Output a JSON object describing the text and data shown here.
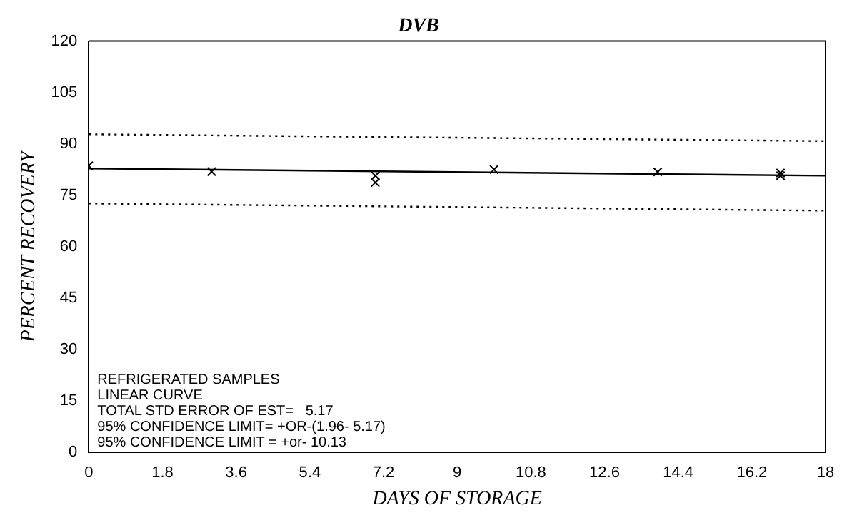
{
  "chart_data": {
    "type": "scatter",
    "title": "DVB",
    "xlabel": "DAYS OF STORAGE",
    "ylabel": "PERCENT RECOVERY",
    "xlim": [
      0,
      18
    ],
    "xticks": [
      0,
      1.8,
      3.6,
      5.4,
      7.2,
      9,
      10.8,
      12.6,
      14.4,
      16.2,
      18
    ],
    "ylim": [
      0,
      120
    ],
    "yticks": [
      0,
      15,
      30,
      45,
      60,
      75,
      90,
      105,
      120
    ],
    "grid": false,
    "legend": false,
    "marker": "cross",
    "series": [
      {
        "type": "scatter",
        "color": "#000000",
        "x": [
          0,
          3,
          7,
          7,
          9.9,
          13.9,
          16.9,
          16.9
        ],
        "values": [
          83.6,
          81.9,
          80.7,
          78.7,
          82.5,
          81.8,
          81.5,
          80.7
        ]
      },
      {
        "type": "line",
        "color": "#000000",
        "line_style": "solid",
        "marker": "none",
        "x": [
          0,
          18
        ],
        "values": [
          82.8,
          80.7
        ]
      },
      {
        "type": "line",
        "color": "#000000",
        "line_style": "dotted",
        "marker": "none",
        "x": [
          0,
          18
        ],
        "values": [
          92.8,
          90.8
        ]
      },
      {
        "type": "line",
        "color": "#000000",
        "line_style": "dotted",
        "marker": "none",
        "x": [
          0,
          18
        ],
        "values": [
          72.6,
          70.5
        ]
      }
    ],
    "annotations": [
      "REFRIGERATED SAMPLES",
      "LINEAR CURVE",
      "TOTAL STD ERROR OF EST=   5.17",
      "95% CONFIDENCE LIMIT= +OR-(1.96- 5.17)",
      "95% CONFIDENCE LIMIT = +or- 10.13"
    ]
  }
}
